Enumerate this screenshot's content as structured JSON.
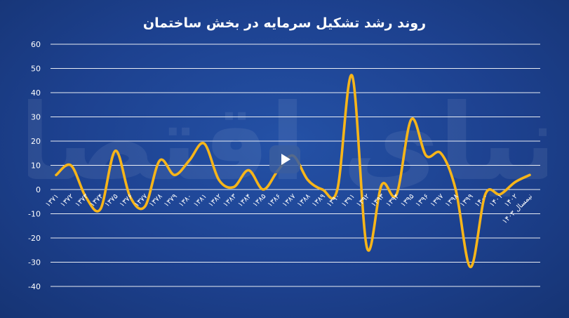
{
  "chart_data": {
    "type": "line",
    "title": "روند رشد تشکیل سرمایه در بخش ساختمان",
    "y_tick_labels": [
      "60",
      "50",
      "40",
      "30",
      "20",
      "10",
      "0",
      "-10",
      "-20",
      "-30",
      "-40"
    ],
    "ylim": [
      -40,
      60
    ],
    "categories": [
      "۱۳۷۱",
      "۱۳۷۲",
      "۱۳۷۳",
      "۱۳۷۴",
      "۱۳۷۵",
      "۱۳۷۶",
      "۱۳۷۷",
      "۱۳۷۸",
      "۱۳۷۹",
      "۱۳۸۰",
      "۱۳۸۱",
      "۱۳۸۲",
      "۱۳۸۳",
      "۱۳۸۴",
      "۱۳۸۵",
      "۱۳۸۶",
      "۱۳۸۷",
      "۱۳۸۸",
      "۱۳۸۹",
      "۱۳۹۰",
      "۱۳۹۱",
      "۱۳۹۲",
      "۱۳۹۳",
      "۱۳۹۴",
      "۱۳۹۵",
      "۱۳۹۶",
      "۱۳۹۷",
      "۱۳۹۸",
      "۱۳۹۹",
      "۱۴۰۰",
      "۱۴۰۱",
      "۱۴۰۲",
      "نیمسال ۱۴۰۳"
    ],
    "values": [
      6,
      10,
      -3,
      -8,
      16,
      -3,
      -7,
      12,
      6,
      12,
      19,
      4,
      1,
      8,
      0,
      8,
      14,
      4,
      0,
      0,
      47,
      -24,
      2,
      -2,
      29,
      14,
      15,
      0,
      -32,
      -2,
      -2,
      3,
      6
    ],
    "grid": true,
    "line_color": "#f7b519",
    "text_color": "#ffffff",
    "background_color": "#1f448f"
  },
  "video_overlay": {
    "icon": "play-icon"
  },
  "watermark": {
    "text": "دنیای اقتصاد"
  }
}
